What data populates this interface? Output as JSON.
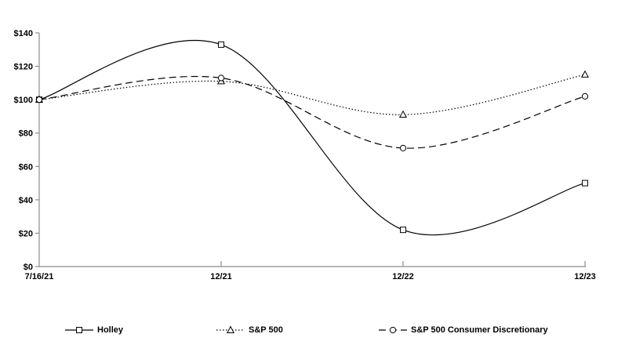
{
  "chart_data": {
    "type": "line",
    "title": "",
    "x": [
      "7/16/21",
      "12/21",
      "12/22",
      "12/23"
    ],
    "series": [
      {
        "name": "Holley",
        "values": [
          100,
          133,
          22,
          50
        ],
        "marker": "square",
        "line_style": "solid"
      },
      {
        "name": "S&P 500",
        "values": [
          100,
          111,
          91,
          115
        ],
        "marker": "triangle",
        "line_style": "dotted"
      },
      {
        "name": "S&P 500 Consumer Discretionary",
        "values": [
          100,
          113,
          71,
          102
        ],
        "marker": "circle",
        "line_style": "dashed"
      }
    ],
    "ylim": [
      0,
      140
    ],
    "yticks": [
      0,
      20,
      40,
      60,
      80,
      100,
      120,
      140
    ],
    "ytick_labels": [
      "$0",
      "$20",
      "$40",
      "$60",
      "$80",
      "$100",
      "$120",
      "$140"
    ],
    "xlabel": "",
    "ylabel": "",
    "grid": false,
    "smoothed_lines": true,
    "legend_position": "bottom",
    "colors": {
      "series_color": "#000000",
      "axis_color": "#8c8c8c",
      "label_color": "#000000",
      "background": "#ffffff",
      "marker_fill": "#ffffff"
    }
  }
}
